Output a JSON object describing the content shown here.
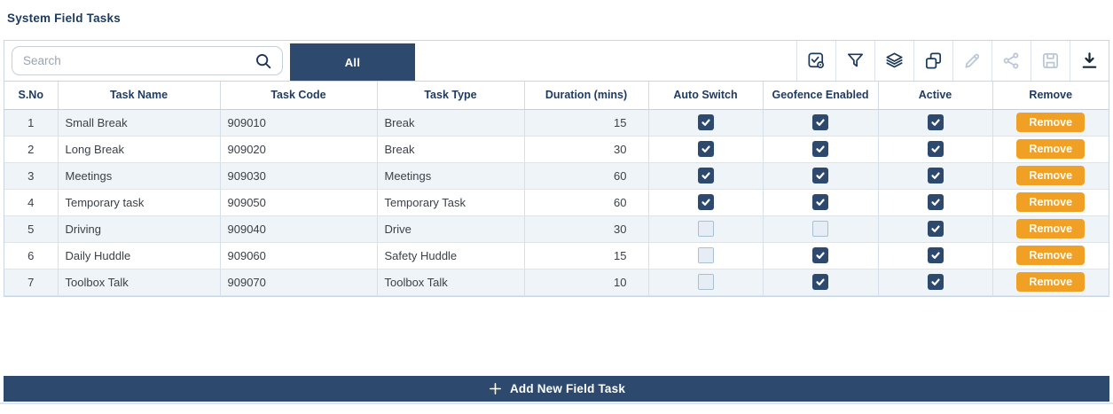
{
  "page": {
    "title": "System Field Tasks"
  },
  "toolbar": {
    "search": {
      "placeholder": "Search",
      "value": ""
    },
    "tabs": [
      {
        "label": "All",
        "active": true
      }
    ],
    "icons": [
      {
        "name": "select-verified-icon",
        "enabled": true
      },
      {
        "name": "filter-icon",
        "enabled": true
      },
      {
        "name": "layers-icon",
        "enabled": true
      },
      {
        "name": "copy-icon",
        "enabled": true
      },
      {
        "name": "edit-icon",
        "enabled": false
      },
      {
        "name": "share-icon",
        "enabled": false
      },
      {
        "name": "save-icon",
        "enabled": false
      },
      {
        "name": "download-icon",
        "enabled": true,
        "strong": true
      }
    ]
  },
  "table": {
    "columns": [
      "S.No",
      "Task Name",
      "Task Code",
      "Task Type",
      "Duration (mins)",
      "Auto Switch",
      "Geofence Enabled",
      "Active",
      "Remove"
    ],
    "remove_label": "Remove",
    "rows": [
      {
        "sno": "1",
        "task_name": "Small Break",
        "task_code": "909010",
        "task_type": "Break",
        "duration": "15",
        "auto_switch": true,
        "geofence_enabled": true,
        "active": true
      },
      {
        "sno": "2",
        "task_name": "Long Break",
        "task_code": "909020",
        "task_type": "Break",
        "duration": "30",
        "auto_switch": true,
        "geofence_enabled": true,
        "active": true
      },
      {
        "sno": "3",
        "task_name": "Meetings",
        "task_code": "909030",
        "task_type": "Meetings",
        "duration": "60",
        "auto_switch": true,
        "geofence_enabled": true,
        "active": true
      },
      {
        "sno": "4",
        "task_name": "Temporary task",
        "task_code": "909050",
        "task_type": "Temporary Task",
        "duration": "60",
        "auto_switch": true,
        "geofence_enabled": true,
        "active": true
      },
      {
        "sno": "5",
        "task_name": "Driving",
        "task_code": "909040",
        "task_type": "Drive",
        "duration": "30",
        "auto_switch": false,
        "geofence_enabled": false,
        "active": true
      },
      {
        "sno": "6",
        "task_name": "Daily Huddle",
        "task_code": "909060",
        "task_type": "Safety Huddle",
        "duration": "15",
        "auto_switch": false,
        "geofence_enabled": true,
        "active": true
      },
      {
        "sno": "7",
        "task_name": "Toolbox Talk",
        "task_code": "909070",
        "task_type": "Toolbox Talk",
        "duration": "10",
        "auto_switch": false,
        "geofence_enabled": true,
        "active": true
      }
    ]
  },
  "footer": {
    "add_button_label": "Add New Field Task"
  },
  "colors": {
    "navy_fill": "#2d4a6e",
    "navy_text": "#1f3a5f",
    "orange": "#f0a024",
    "row_alt": "#eff4f9",
    "border": "#ccd6e0",
    "disabled_icon": "#b9c6d6"
  }
}
